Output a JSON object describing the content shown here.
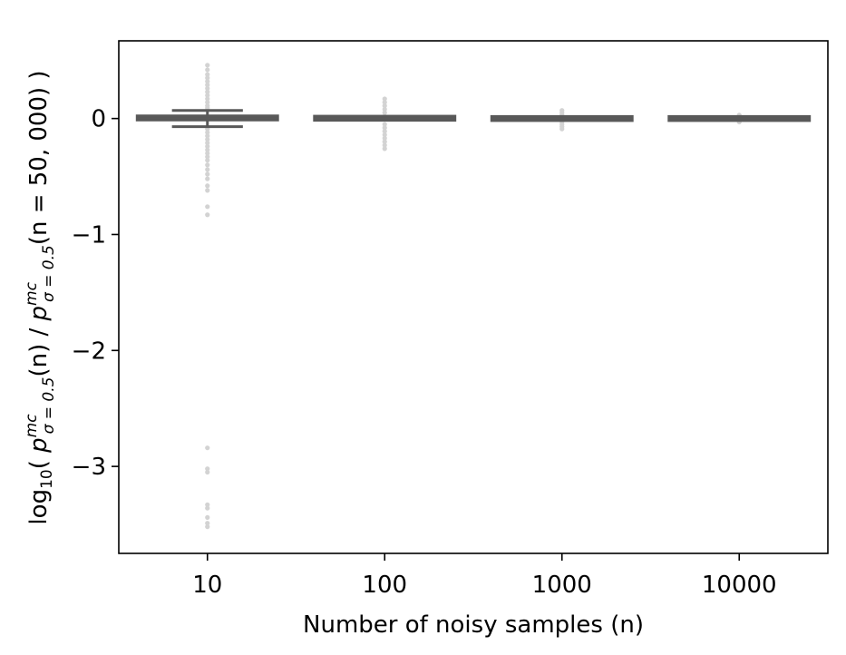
{
  "chart_data": {
    "type": "boxplot",
    "xlabel": "Number of noisy samples (n)",
    "ylabel": {
      "pre": "log",
      "sub10": "10",
      "open": "( ",
      "p1": "p",
      "sup1": "mc",
      "sub1": "σ = 0.5",
      "arg1": "(n) / ",
      "p2": "p",
      "sup2": "mc",
      "sub2": "σ = 0.5",
      "arg2": "(n = 50, 000) )"
    },
    "categories": [
      "10",
      "100",
      "1000",
      "10000"
    ],
    "ylim": [
      -3.75,
      0.67
    ],
    "yticks": [
      0,
      -1,
      -2,
      -3
    ],
    "ytick_labels": [
      "0",
      "−1",
      "−2",
      "−3"
    ],
    "grid": false,
    "box_color": "#595959",
    "outlier_color": "#d3d3d3",
    "boxes": [
      {
        "q1": -0.01,
        "median": 0.0,
        "q3": 0.02,
        "whisker_low": -0.07,
        "whisker_high": 0.07,
        "outliers": [
          0.46,
          0.42,
          0.38,
          0.35,
          0.32,
          0.29,
          0.26,
          0.23,
          0.2,
          0.17,
          0.14,
          0.11,
          0.09,
          -0.09,
          -0.12,
          -0.15,
          -0.18,
          -0.21,
          -0.24,
          -0.27,
          -0.3,
          -0.33,
          -0.36,
          -0.4,
          -0.44,
          -0.48,
          -0.52,
          -0.58,
          -0.62,
          -0.76,
          -0.83,
          -2.84,
          -3.02,
          -3.05,
          -3.33,
          -3.36,
          -3.44,
          -3.49,
          -3.52
        ]
      },
      {
        "q1": -0.02,
        "median": 0.0,
        "q3": 0.025,
        "whisker_low": -0.025,
        "whisker_high": 0.025,
        "outliers": [
          0.17,
          0.14,
          0.11,
          0.08,
          0.05,
          -0.05,
          -0.08,
          -0.11,
          -0.14,
          -0.17,
          -0.2,
          -0.23,
          -0.26
        ]
      },
      {
        "q1": -0.005,
        "median": 0.0,
        "q3": 0.005,
        "whisker_low": -0.008,
        "whisker_high": 0.008,
        "outliers": [
          0.07,
          0.05,
          0.03,
          -0.03,
          -0.05,
          -0.07,
          -0.09
        ]
      },
      {
        "q1": -0.003,
        "median": 0.0,
        "q3": 0.003,
        "whisker_low": -0.005,
        "whisker_high": 0.005,
        "outliers": [
          0.03,
          0.02,
          -0.02,
          -0.03
        ]
      }
    ]
  }
}
